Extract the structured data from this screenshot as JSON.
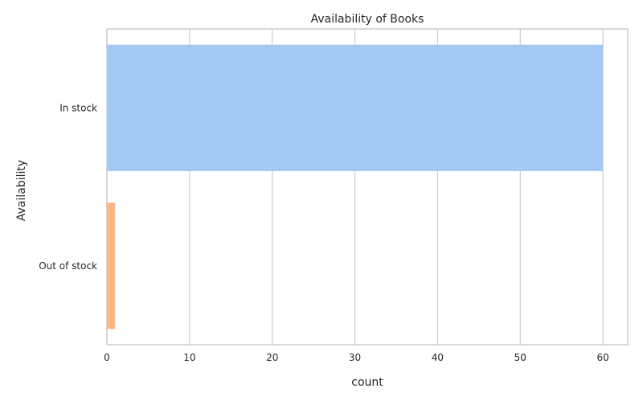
{
  "chart_data": {
    "type": "bar",
    "orientation": "horizontal",
    "title": "Availability of Books",
    "xlabel": "count",
    "ylabel": "Availability",
    "categories": [
      "In stock",
      "Out of stock"
    ],
    "values": [
      60,
      1
    ],
    "xlim": [
      0,
      63
    ],
    "xticks": [
      "0",
      "10",
      "20",
      "30",
      "40",
      "50",
      "60"
    ],
    "grid": true,
    "colors": [
      "#a1c9f4",
      "#ffb482"
    ]
  }
}
